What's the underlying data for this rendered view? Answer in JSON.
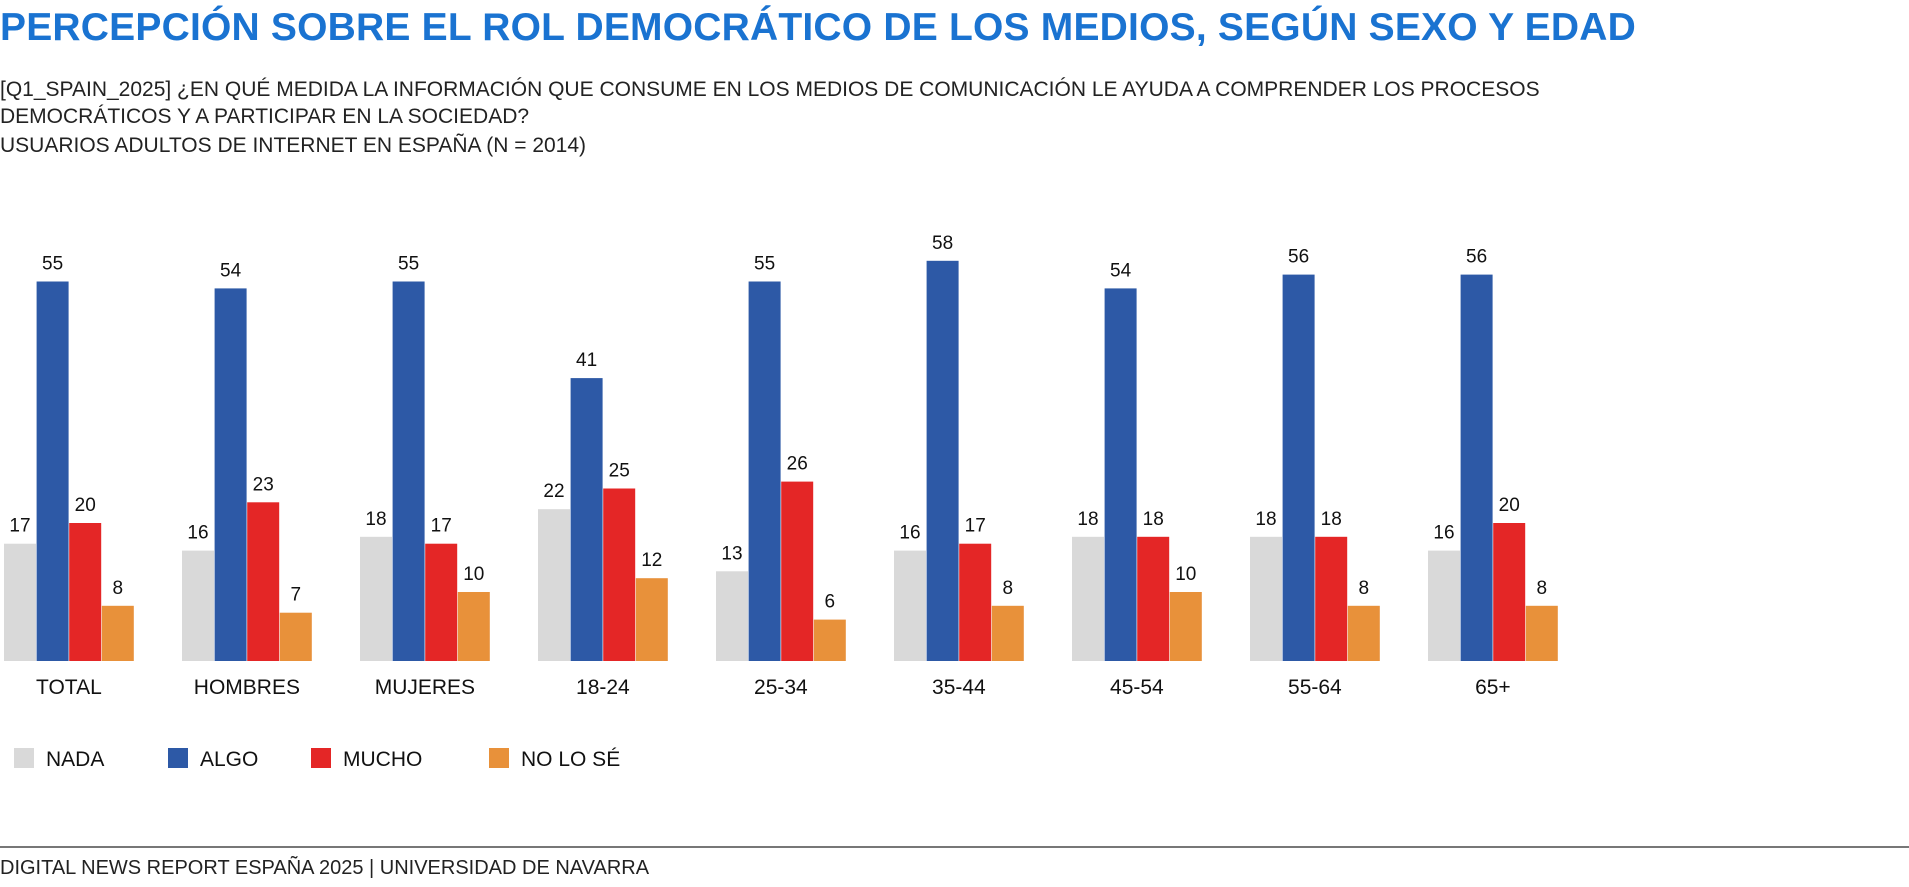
{
  "title": "PERCEPCIÓN SOBRE EL ROL DEMOCRÁTICO DE LOS MEDIOS, SEGÚN SEXO Y EDAD",
  "question": "[Q1_SPAIN_2025] ¿EN QUÉ MEDIDA LA INFORMACIÓN QUE CONSUME EN LOS MEDIOS DE COMUNICACIÓN LE AYUDA A COMPRENDER LOS PROCESOS DEMOCRÁTICOS Y A PARTICIPAR EN LA SOCIEDAD?",
  "base": "USUARIOS ADULTOS DE INTERNET EN ESPAÑA (N = 2014)",
  "footer": "DIGITAL NEWS REPORT ESPAÑA 2025 | UNIVERSIDAD DE NAVARRA",
  "chart_data": {
    "type": "bar",
    "categories": [
      "TOTAL",
      "HOMBRES",
      "MUJERES",
      "18-24",
      "25-34",
      "35-44",
      "45-54",
      "55-64",
      "65+"
    ],
    "series": [
      {
        "name": "NADA",
        "color": "#d9d9d9",
        "values": [
          17,
          16,
          18,
          22,
          13,
          16,
          18,
          18,
          16
        ]
      },
      {
        "name": "ALGO",
        "color": "#2d59a6",
        "values": [
          55,
          54,
          55,
          41,
          55,
          58,
          54,
          56,
          56
        ]
      },
      {
        "name": "MUCHO",
        "color": "#e42626",
        "values": [
          20,
          23,
          17,
          25,
          26,
          17,
          18,
          18,
          20
        ]
      },
      {
        "name": "NO LO SÉ",
        "color": "#e8913a",
        "values": [
          8,
          7,
          10,
          12,
          6,
          8,
          10,
          8,
          8
        ]
      }
    ],
    "ylim": [
      0,
      60
    ],
    "grid": false,
    "legend": "bottom-left"
  }
}
